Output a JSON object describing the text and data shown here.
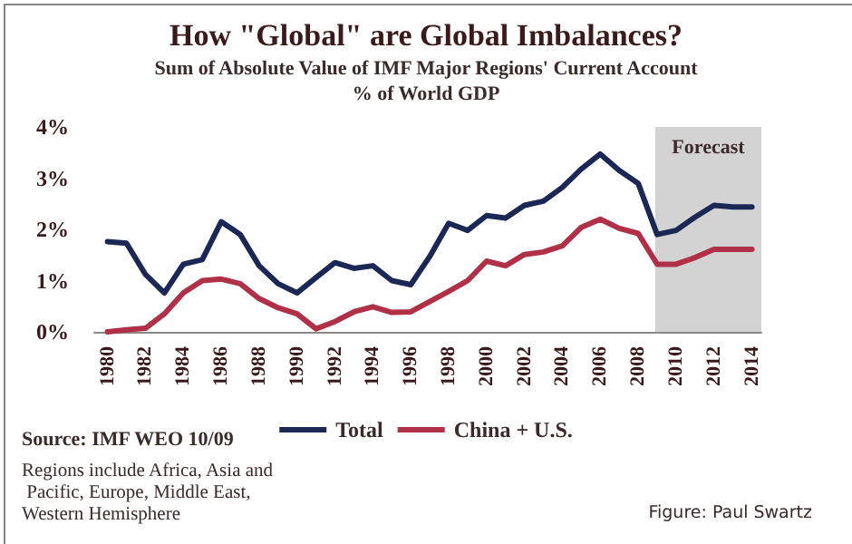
{
  "chart_data": {
    "type": "line",
    "title": "How \"Global\" are Global Imbalances?",
    "subtitle": "Sum of Absolute Value of IMF Major Regions' Current Account\n% of World GDP",
    "x": [
      1980,
      1981,
      1982,
      1983,
      1984,
      1985,
      1986,
      1987,
      1988,
      1989,
      1990,
      1991,
      1992,
      1993,
      1994,
      1995,
      1996,
      1997,
      1998,
      1999,
      2000,
      2001,
      2002,
      2003,
      2004,
      2005,
      2006,
      2007,
      2008,
      2009,
      2010,
      2011,
      2012,
      2013,
      2014
    ],
    "series": [
      {
        "name": "Total",
        "color": "#1b2754",
        "values": [
          1.76,
          1.73,
          1.12,
          0.76,
          1.32,
          1.41,
          2.15,
          1.9,
          1.29,
          0.94,
          0.76,
          1.06,
          1.35,
          1.24,
          1.29,
          1.0,
          0.92,
          1.47,
          2.12,
          1.98,
          2.27,
          2.22,
          2.47,
          2.55,
          2.82,
          3.18,
          3.47,
          3.15,
          2.9,
          1.9,
          1.98,
          2.24,
          2.47,
          2.44,
          2.44
        ]
      },
      {
        "name": "China + U.S.",
        "color": "#b03048",
        "values": [
          0,
          0.04,
          0.07,
          0.35,
          0.76,
          1.0,
          1.03,
          0.94,
          0.65,
          0.47,
          0.35,
          0.06,
          0.2,
          0.39,
          0.49,
          0.38,
          0.39,
          0.59,
          0.79,
          1.0,
          1.38,
          1.29,
          1.51,
          1.56,
          1.68,
          2.04,
          2.2,
          2.02,
          1.92,
          1.32,
          1.32,
          1.45,
          1.61,
          1.61,
          1.61
        ]
      }
    ],
    "xlim": [
      1979.3,
      2014.5
    ],
    "xticks": [
      1980,
      1982,
      1984,
      1986,
      1988,
      1990,
      1992,
      1994,
      1996,
      1998,
      2000,
      2002,
      2004,
      2006,
      2008,
      2010,
      2012,
      2014
    ],
    "ylim": [
      0,
      4
    ],
    "yticks": [
      {
        "value": 0,
        "label": "0%"
      },
      {
        "value": 1,
        "label": "1%"
      },
      {
        "value": 2,
        "label": "2%"
      },
      {
        "value": 3,
        "label": "3%"
      },
      {
        "value": 4,
        "label": "4%"
      }
    ],
    "bands": [
      {
        "axis": "x",
        "from": 2008.9,
        "to": 2014.5,
        "label": "Forecast",
        "color": "#d3d3d3"
      }
    ],
    "annotations": [
      "Source: IMF WEO 10/09",
      "Regions include Africa, Asia and Pacific, Europe, Middle East, Western Hemisphere",
      "Figure: Paul Swartz"
    ],
    "grid": false,
    "legend": "bottom",
    "marker": "none",
    "line_style": "solid"
  }
}
